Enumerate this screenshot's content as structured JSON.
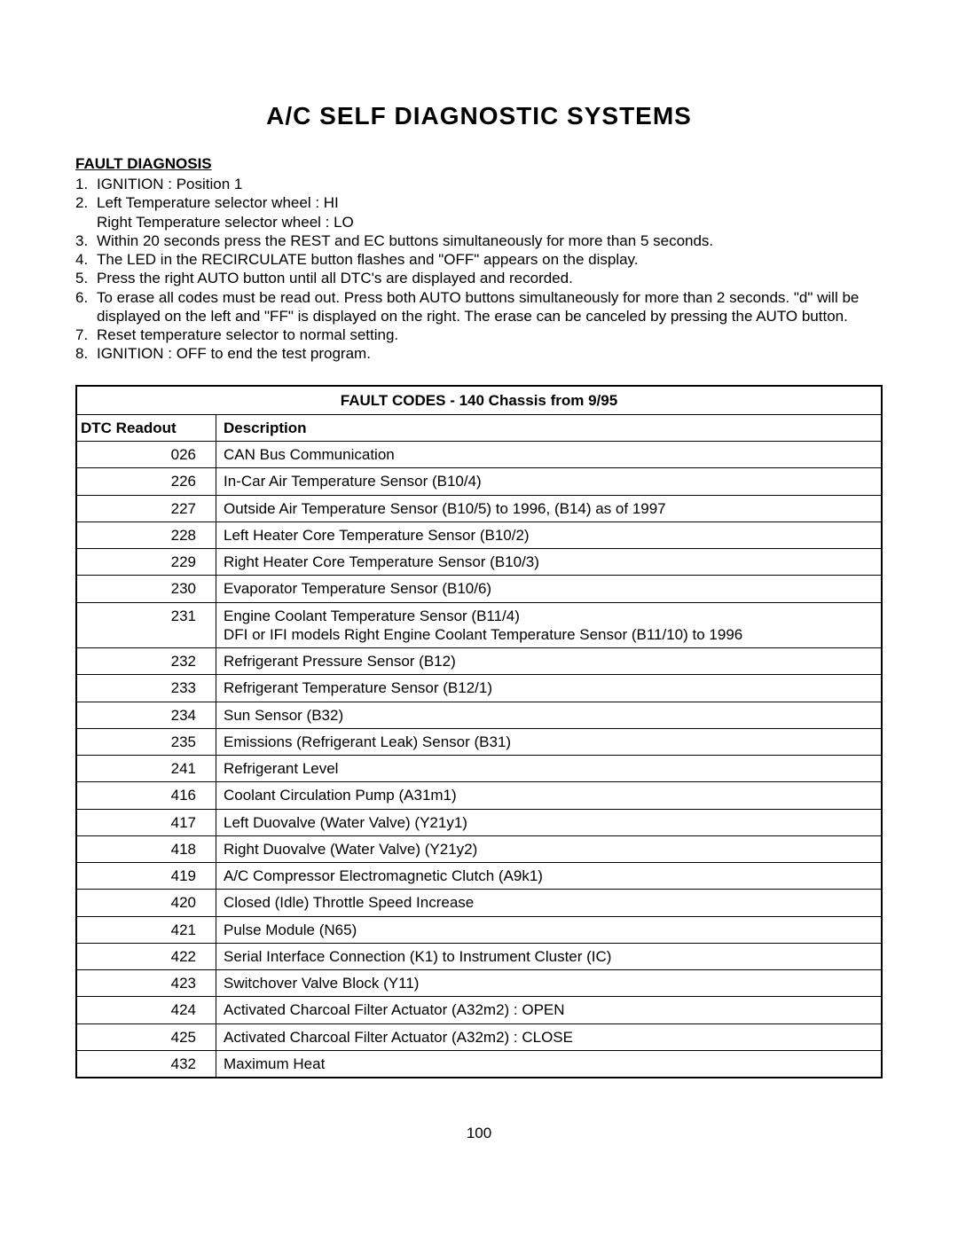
{
  "title": "A/C SELF DIAGNOSTIC SYSTEMS",
  "section_header": "FAULT DIAGNOSIS",
  "steps": [
    {
      "n": "1.",
      "lines": [
        "IGNITION : Position 1"
      ]
    },
    {
      "n": "2.",
      "lines": [
        "Left Temperature selector wheel : HI",
        "Right Temperature selector wheel : LO"
      ]
    },
    {
      "n": "3.",
      "lines": [
        "Within 20 seconds press the REST and EC buttons simultaneously  for more than 5 seconds."
      ]
    },
    {
      "n": "4.",
      "lines": [
        "The LED in the RECIRCULATE button flashes and \"OFF\" appears on the display."
      ]
    },
    {
      "n": "5.",
      "lines": [
        "Press the right AUTO button until all DTC's are displayed and recorded."
      ]
    },
    {
      "n": "6.",
      "lines": [
        "To erase all codes must be read out. Press both AUTO buttons simultaneously for more than 2 seconds. \"d\" will be displayed on the left and \"FF\" is displayed on the right. The erase can be canceled by pressing the AUTO button."
      ]
    },
    {
      "n": "7.",
      "lines": [
        "Reset temperature selector to normal setting."
      ]
    },
    {
      "n": "8.",
      "lines": [
        "IGNITION : OFF to end the test program."
      ]
    }
  ],
  "table": {
    "caption": "FAULT CODES - 140 Chassis from 9/95",
    "columns": [
      "DTC Readout",
      "Description"
    ],
    "rows": [
      {
        "code": "026",
        "desc": "CAN Bus Communication"
      },
      {
        "code": "226",
        "desc": "In-Car Air Temperature Sensor (B10/4)"
      },
      {
        "code": "227",
        "desc": "Outside Air Temperature Sensor (B10/5) to 1996, (B14) as of 1997"
      },
      {
        "code": "228",
        "desc": "Left Heater Core Temperature Sensor (B10/2)"
      },
      {
        "code": "229",
        "desc": "Right Heater Core Temperature Sensor (B10/3)"
      },
      {
        "code": "230",
        "desc": "Evaporator Temperature Sensor (B10/6)"
      },
      {
        "code": "231",
        "desc": "Engine Coolant Temperature Sensor (B11/4)\nDFI or IFI models Right Engine Coolant Temperature Sensor (B11/10) to 1996"
      },
      {
        "code": "232",
        "desc": "Refrigerant Pressure Sensor (B12)"
      },
      {
        "code": "233",
        "desc": "Refrigerant Temperature Sensor (B12/1)"
      },
      {
        "code": "234",
        "desc": "Sun Sensor (B32)"
      },
      {
        "code": "235",
        "desc": "Emissions (Refrigerant Leak) Sensor (B31)"
      },
      {
        "code": "241",
        "desc": "Refrigerant Level"
      },
      {
        "code": "416",
        "desc": "Coolant Circulation Pump (A31m1)"
      },
      {
        "code": "417",
        "desc": "Left Duovalve (Water Valve) (Y21y1)"
      },
      {
        "code": "418",
        "desc": "Right Duovalve (Water Valve) (Y21y2)"
      },
      {
        "code": "419",
        "desc": "A/C Compressor Electromagnetic Clutch (A9k1)"
      },
      {
        "code": "420",
        "desc": "Closed (Idle) Throttle Speed Increase"
      },
      {
        "code": "421",
        "desc": "Pulse Module (N65)"
      },
      {
        "code": "422",
        "desc": "Serial Interface Connection (K1) to Instrument Cluster (IC)"
      },
      {
        "code": "423",
        "desc": "Switchover Valve Block (Y11)"
      },
      {
        "code": "424",
        "desc": "Activated Charcoal Filter Actuator (A32m2) : OPEN"
      },
      {
        "code": "425",
        "desc": "Activated Charcoal Filter Actuator (A32m2) : CLOSE"
      },
      {
        "code": "432",
        "desc": "Maximum Heat"
      }
    ]
  },
  "page_number": "100"
}
